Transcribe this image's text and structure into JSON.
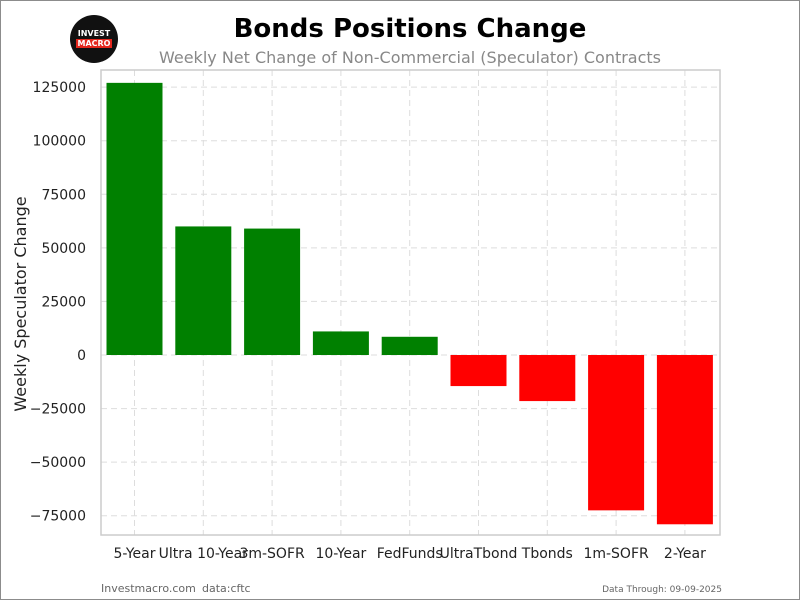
{
  "logo": {
    "line1": "INVEST",
    "line2": "MACRO"
  },
  "footer": {
    "site": "Investmacro.com",
    "source": "data:cftc",
    "data_through": "Data Through: 09-09-2025"
  },
  "colors": {
    "positive": "#008000",
    "negative": "#ff0000",
    "grid": "#dddddd",
    "axis_border": "#cccccc"
  },
  "chart_data": {
    "type": "bar",
    "title": "Bonds Positions Change",
    "subtitle": "Weekly Net Change of Non-Commercial (Speculator) Contracts",
    "xlabel": "",
    "ylabel": "Weekly Speculator Change",
    "categories": [
      "5-Year",
      "Ultra 10-Year",
      "3m-SOFR",
      "10-Year",
      "FedFunds",
      "UltraTbond",
      "Tbonds",
      "1m-SOFR",
      "2-Year"
    ],
    "values": [
      127000,
      60000,
      59000,
      11000,
      8500,
      -14500,
      -21500,
      -72500,
      -79000
    ],
    "ylim": [
      -84000,
      133000
    ],
    "yticks": [
      -75000,
      -50000,
      -25000,
      0,
      25000,
      50000,
      75000,
      100000,
      125000
    ],
    "ytick_labels": [
      "−75000",
      "−50000",
      "−25000",
      "0",
      "25000",
      "50000",
      "75000",
      "100000",
      "125000"
    ],
    "grid": true,
    "legend": "none"
  }
}
